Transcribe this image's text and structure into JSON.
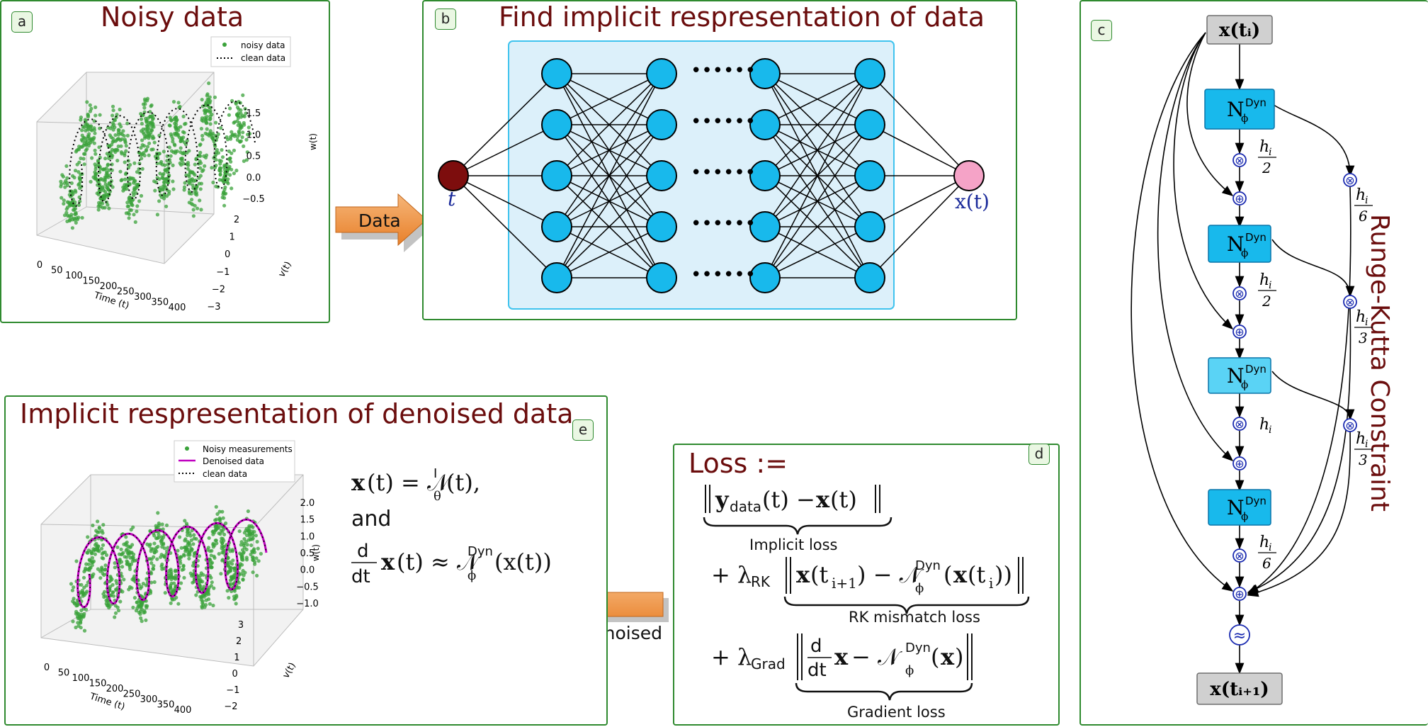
{
  "panel_a": {
    "tag": "a",
    "title": "Noisy data",
    "legend": [
      "noisy data",
      "clean data"
    ],
    "x_ticks": [
      "0",
      "50",
      "100",
      "150",
      "200",
      "250",
      "300",
      "350",
      "400"
    ],
    "x_label": "Time (t)",
    "y_ticks": [
      "−3",
      "−2",
      "−1",
      "0",
      "1",
      "2"
    ],
    "y_label": "v(t)",
    "z_ticks": [
      "−0.5",
      "0.0",
      "0.5",
      "1.0",
      "1.5"
    ],
    "z_label": "w(t)"
  },
  "panel_b": {
    "tag": "b",
    "title": "Find implicit respresentation of data",
    "input_label": "t",
    "output_label": "x(t)",
    "dots": "••••••"
  },
  "panel_c": {
    "tag": "c",
    "side_title": "Runge-Kutta Constraint",
    "top_box": "x(t_i)",
    "bottom_box": "x(t_{i+1})",
    "net_label": "N",
    "net_sup": "Dyn",
    "net_sub": "ϕ",
    "h_label": "h",
    "h_sub": "i",
    "fr2": "2",
    "fr3": "3",
    "fr6": "6",
    "times": "⊗",
    "plus": "⊕",
    "approx": "≈"
  },
  "panel_d": {
    "tag": "d",
    "loss_title": "Loss :=",
    "implicit_loss": "Implicit loss",
    "rk_loss": "RK mismatch loss",
    "grad_loss": "Gradient loss",
    "lambda_rk": "RK",
    "lambda_grad": "Grad",
    "data_sub": "data"
  },
  "panel_e": {
    "tag": "e",
    "title": "Implicit respresentation of denoised data",
    "legend": [
      "Noisy measurements",
      "Denoised data",
      "clean data"
    ],
    "x_ticks": [
      "0",
      "50",
      "100",
      "150",
      "200",
      "250",
      "300",
      "350",
      "400"
    ],
    "x_label": "Time (t)",
    "y_ticks": [
      "−2",
      "−1",
      "0",
      "1",
      "2",
      "3"
    ],
    "y_label": "v(t)",
    "z_ticks": [
      "−1.0",
      "−0.5",
      "0.0",
      "0.5",
      "1.0",
      "1.5",
      "2.0"
    ],
    "z_label": "w(t)",
    "and": "and",
    "d": "d",
    "dt": "dt"
  },
  "arrows": {
    "data": "Data",
    "denoised": "Denoised"
  },
  "colors": {
    "panel_border": "#2f8a2f",
    "title": "#6b0d0d",
    "node": "#18b9ec",
    "net_box_bg": "#dcf0fa",
    "input_node": "#7d0d0d",
    "output_node": "#f5a3c7",
    "scatter": "#3aa23a",
    "denoised": "#c000c0",
    "arrow_fill": "#f39a4a"
  }
}
